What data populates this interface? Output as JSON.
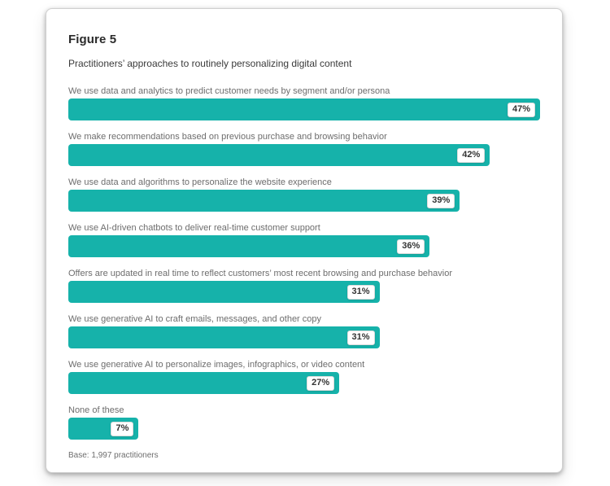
{
  "figure": {
    "label": "Figure 5",
    "subtitle": "Practitioners’ approaches to routinely personalizing digital content",
    "base_note": "Base: 1,997 practitioners"
  },
  "colors": {
    "bar_teal": "#16B2AA",
    "card_background": "#ffffff",
    "category_label_gray": "#6d6d6d"
  },
  "chart_data": {
    "type": "bar",
    "orientation": "horizontal",
    "title": "Practitioners’ approaches to routinely personalizing digital content",
    "categories": [
      "We use data and analytics to predict customer needs by segment and/or persona",
      "We make recommendations based on previous purchase and browsing behavior",
      "We use data and algorithms to personalize the website experience",
      "We use AI-driven chatbots to deliver real-time customer support",
      "Offers are updated in real time to reflect customers’ most recent browsing and purchase behavior",
      "We use generative AI to craft emails, messages, and other copy",
      "We use generative AI to personalize images, infographics, or video content",
      "None of these"
    ],
    "values": [
      47,
      42,
      39,
      36,
      31,
      31,
      27,
      7
    ],
    "value_suffix": "%",
    "xlabel": "",
    "ylabel": "",
    "xlim": [
      0,
      47
    ],
    "grid": false,
    "legend": false,
    "bar_color": "#16B2AA",
    "value_labels": "white chip inside right end of each bar",
    "footnote": "Base: 1,997 practitioners"
  }
}
